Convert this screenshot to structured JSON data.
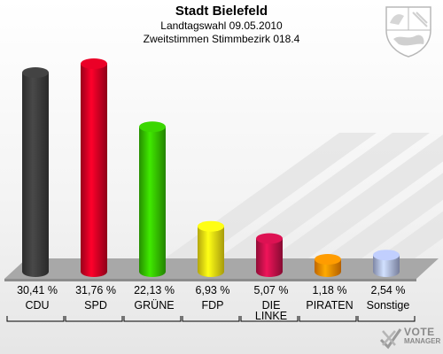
{
  "header": {
    "title": "Stadt Bielefeld",
    "line2": "Landtagswahl 09.05.2010",
    "line3": "Zweitstimmen Stimmbezirk 018.4"
  },
  "logo": {
    "line1": "VOTE",
    "line2": "MANAGER"
  },
  "crest_icon": "nrw-coat-of-arms-icon",
  "chart_data": {
    "type": "bar",
    "categories": [
      "CDU",
      "SPD",
      "GRÜNE",
      "FDP",
      "DIE LINKE",
      "PIRATEN",
      "Sonstige"
    ],
    "values": [
      30.41,
      31.76,
      22.13,
      6.93,
      5.07,
      1.18,
      2.54
    ],
    "value_labels": [
      "30,41 %",
      "31,76 %",
      "22,13 %",
      "6,93 %",
      "5,07 %",
      "1,18 %",
      "2,54 %"
    ],
    "colors": [
      "#3a3a3a",
      "#cc0022",
      "#33bb00",
      "#eedd11",
      "#c01048",
      "#ff8800",
      "#a8b4dd"
    ],
    "unit": "%",
    "ylim": [
      0,
      31.76
    ],
    "grid": false,
    "legend": "none"
  }
}
